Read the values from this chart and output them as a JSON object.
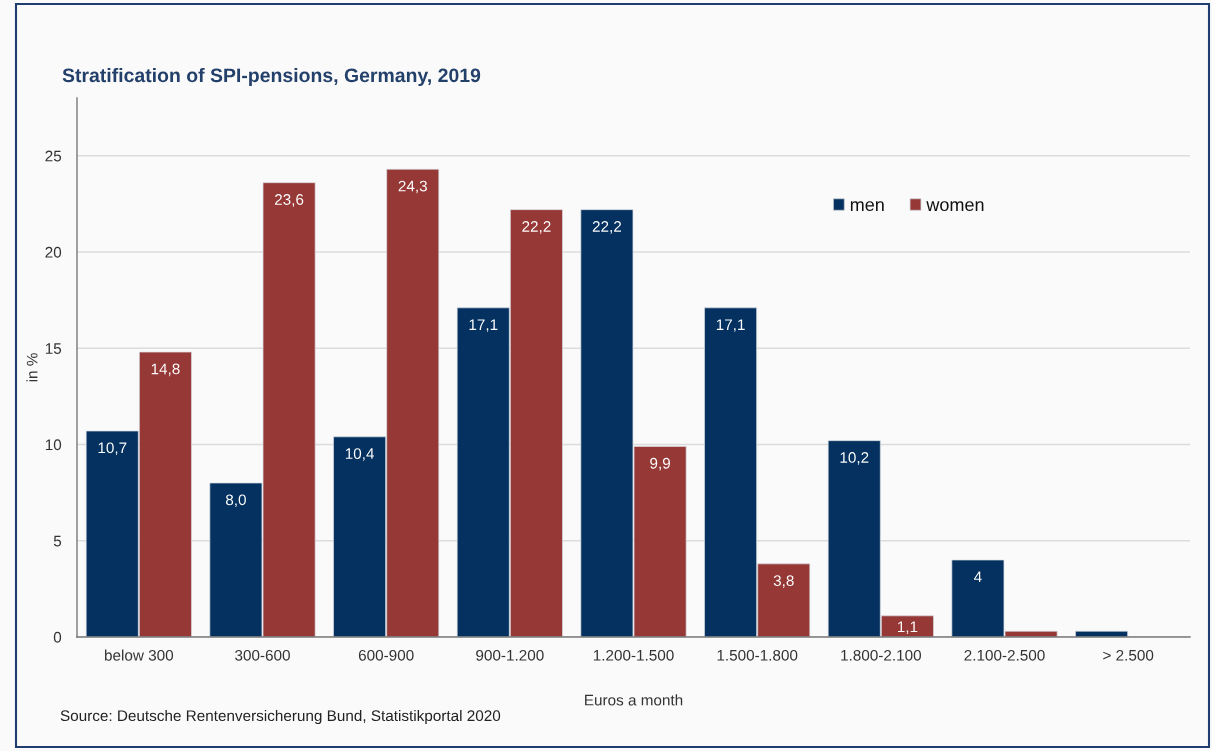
{
  "chart_data": {
    "type": "bar",
    "title": "Stratification of SPI-pensions, Germany, 2019",
    "xlabel": "Euros a month",
    "ylabel": "in %",
    "annotations": [
      "Source: Deutsche Rentenversicherung Bund, Statistikportal 2020"
    ],
    "categories": [
      "below 300",
      "300-600",
      "600-900",
      "900-1.200",
      "1.200-1.500",
      "1.500-1.800",
      "1.800-2.100",
      "2.100-2.500",
      "> 2.500"
    ],
    "series": [
      {
        "name": "men",
        "color": "#04315f",
        "values": [
          10.7,
          8.0,
          10.4,
          17.1,
          22.2,
          17.1,
          10.2,
          4,
          0.3
        ],
        "value_labels": [
          "10,7",
          "8,0",
          "10,4",
          "17,1",
          "22,2",
          "17,1",
          "10,2",
          "4",
          null
        ]
      },
      {
        "name": "women",
        "color": "#963836",
        "values": [
          14.8,
          23.6,
          24.3,
          22.2,
          9.9,
          3.8,
          1.1,
          0.3,
          null
        ],
        "value_labels": [
          "14,8",
          "23,6",
          "24,3",
          "22,2",
          "9,9",
          "3,8",
          "1,1",
          null,
          null
        ]
      }
    ],
    "ylim": [
      0,
      28
    ],
    "yticks": [
      0,
      5,
      10,
      15,
      20,
      25
    ],
    "grid": "y",
    "legend": "top right"
  }
}
